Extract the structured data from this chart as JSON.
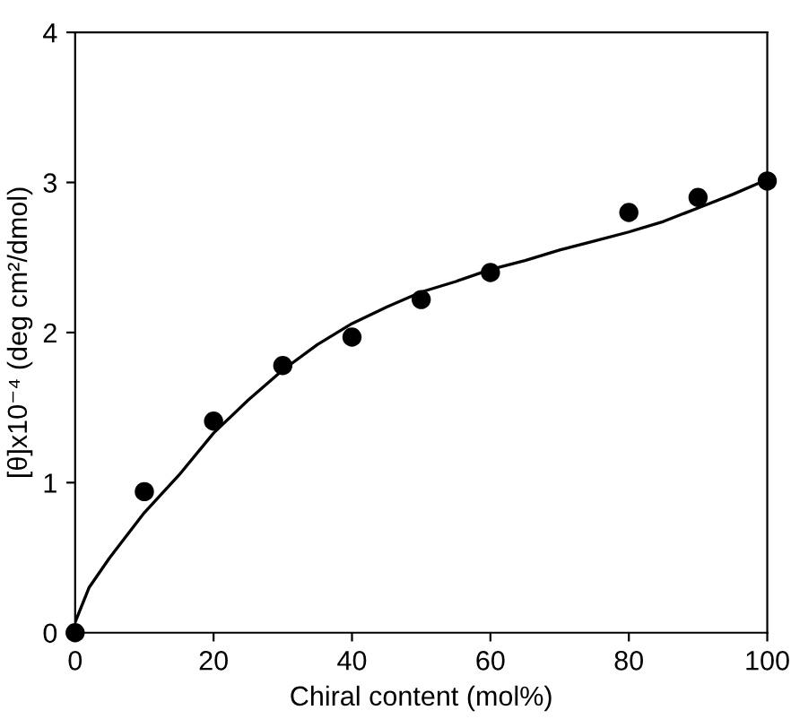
{
  "chart_data": {
    "type": "scatter",
    "xlabel": "Chiral content (mol%)",
    "ylabel": "[θ]x10⁻⁴ (deg cm²/dmol)",
    "xlim": [
      0,
      100
    ],
    "ylim": [
      0,
      4
    ],
    "xticks": [
      0,
      20,
      40,
      60,
      80,
      100
    ],
    "yticks": [
      0,
      1,
      2,
      3,
      4
    ],
    "grid": false,
    "legend": false,
    "series": [
      {
        "color": "#000000",
        "marker": "circle",
        "x": [
          0,
          10,
          20,
          30,
          40,
          50,
          60,
          80,
          90,
          100
        ],
        "values": [
          0,
          0.94,
          1.41,
          1.78,
          1.97,
          2.22,
          2.4,
          2.8,
          2.9,
          3.01
        ]
      },
      {
        "type": "line",
        "color": "#000000",
        "marker": "none",
        "line_style": "solid",
        "x": [
          0,
          2,
          5,
          10,
          15,
          20,
          25,
          30,
          35,
          40,
          45,
          50,
          55,
          60,
          65,
          70,
          75,
          80,
          85,
          90,
          95,
          100
        ],
        "values": [
          0.07,
          0.3,
          0.5,
          0.8,
          1.05,
          1.33,
          1.55,
          1.75,
          1.92,
          2.06,
          2.17,
          2.27,
          2.34,
          2.42,
          2.48,
          2.55,
          2.61,
          2.67,
          2.74,
          2.83,
          2.92,
          3.02
        ]
      }
    ]
  }
}
